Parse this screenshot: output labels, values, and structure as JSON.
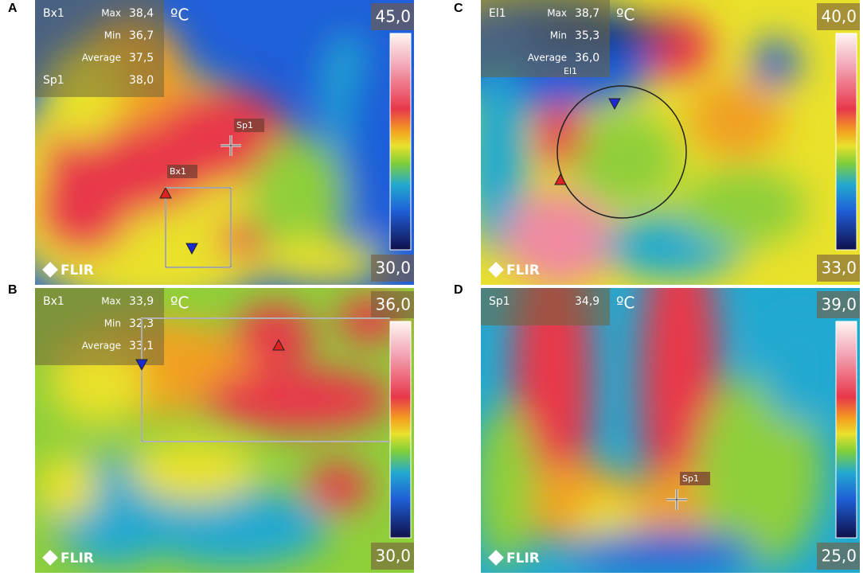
{
  "panels": [
    {
      "letter": "A",
      "measurement": {
        "name": "Bx1",
        "unit": "ºC",
        "rows": [
          {
            "label": "Max",
            "value": "38,4"
          },
          {
            "label": "Min",
            "value": "36,7"
          },
          {
            "label": "Average",
            "value": "37,5"
          }
        ]
      },
      "spot": {
        "name": "Sp1",
        "value": "38,0"
      },
      "markers": [
        "Sp1",
        "Bx1"
      ],
      "scale_max": "45,0",
      "scale_min": "30,0",
      "logo": "FLIR"
    },
    {
      "letter": "C",
      "measurement": {
        "name": "El1",
        "unit": "ºC",
        "rows": [
          {
            "label": "Max",
            "value": "38,7"
          },
          {
            "label": "Min",
            "value": "35,3"
          },
          {
            "label": "Average",
            "value": "36,0"
          }
        ]
      },
      "markers": [
        "El1"
      ],
      "scale_max": "40,0",
      "scale_min": "33,0",
      "logo": "FLIR"
    },
    {
      "letter": "B",
      "measurement": {
        "name": "Bx1",
        "unit": "ºC",
        "rows": [
          {
            "label": "Max",
            "value": "33,9"
          },
          {
            "label": "Min",
            "value": "32,3"
          },
          {
            "label": "Average",
            "value": "33,1"
          }
        ]
      },
      "markers": [],
      "scale_max": "36,0",
      "scale_min": "30,0",
      "logo": "FLIR"
    },
    {
      "letter": "D",
      "measurement": {
        "name": "Sp1",
        "unit": "ºC",
        "rows": [
          {
            "label": "",
            "value": "34,9"
          }
        ]
      },
      "markers": [
        "Sp1"
      ],
      "scale_max": "39,0",
      "scale_min": "25,0",
      "logo": "FLIR"
    }
  ]
}
